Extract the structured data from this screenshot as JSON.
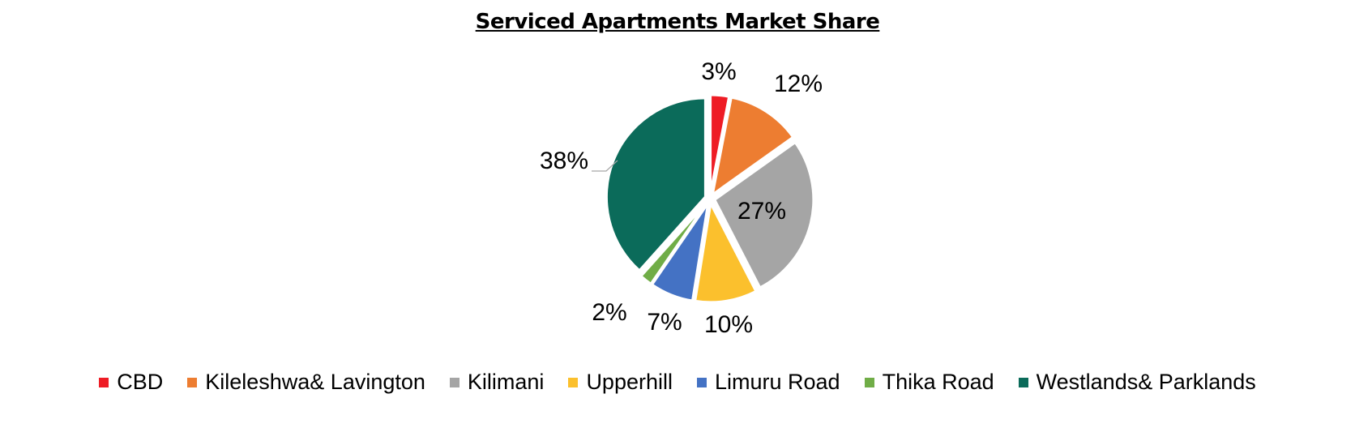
{
  "chart_data": {
    "type": "pie",
    "title": "Serviced Apartments Market Share",
    "legend_position": "bottom",
    "slices": [
      {
        "label": "CBD",
        "value": 3,
        "display": "3%",
        "color": "#ee1c25"
      },
      {
        "label": "Kileleshwa& Lavington",
        "value": 12,
        "display": "12%",
        "color": "#ed7d31"
      },
      {
        "label": "Kilimani",
        "value": 27,
        "display": "27%",
        "color": "#a5a5a5"
      },
      {
        "label": "Upperhill",
        "value": 10,
        "display": "10%",
        "color": "#fbc02d"
      },
      {
        "label": "Limuru Road",
        "value": 7,
        "display": "7%",
        "color": "#4472c4"
      },
      {
        "label": "Thika Road",
        "value": 2,
        "display": "2%",
        "color": "#70ad47"
      },
      {
        "label": "Westlands& Parklands",
        "value": 38,
        "display": "38%",
        "color": "#0b6b5a"
      }
    ]
  }
}
